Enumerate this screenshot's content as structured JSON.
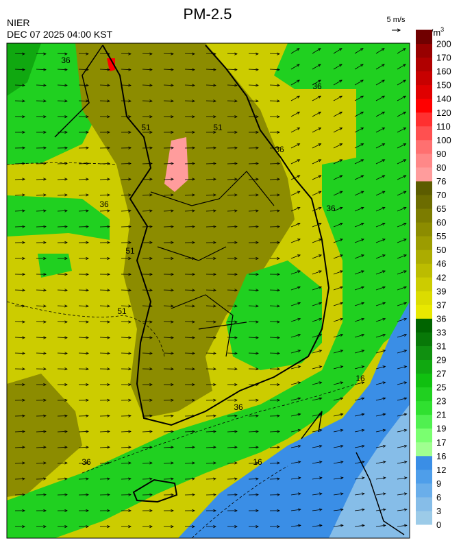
{
  "header": {
    "title": "PM-2.5",
    "agency": "NIER",
    "datetime": "DEC 07 2025 04:00 KST",
    "wind_scale": "5 m/s",
    "unit": "μg/m",
    "unit_power": "3"
  },
  "colorbar": {
    "levels": [
      0,
      3,
      6,
      9,
      12,
      16,
      17,
      19,
      21,
      23,
      25,
      27,
      29,
      31,
      33,
      36,
      37,
      39,
      42,
      46,
      50,
      55,
      60,
      65,
      70,
      76,
      80,
      90,
      100,
      110,
      120,
      140,
      150,
      160,
      170,
      200
    ],
    "colors": [
      "#9ccbe8",
      "#86bde8",
      "#6aaeea",
      "#4e9eea",
      "#3a8ee6",
      "#a0ff90",
      "#7aff70",
      "#50f050",
      "#30e030",
      "#20d020",
      "#10c010",
      "#10a810",
      "#109010",
      "#087808",
      "#006400",
      "#e8e800",
      "#dcdc00",
      "#cccc00",
      "#bcbc00",
      "#acac00",
      "#9c9c00",
      "#8c8c00",
      "#7c7c00",
      "#6c6c00",
      "#5c5c00",
      "#ff9c9c",
      "#ff8888",
      "#ff7070",
      "#ff5050",
      "#ff3030",
      "#ff0000",
      "#e00000",
      "#c80000",
      "#b00000",
      "#980000",
      "#700000"
    ]
  },
  "contour_labels": [
    "36",
    "36",
    "51",
    "51",
    "36",
    "36",
    "36",
    "51",
    "51",
    "36",
    "36",
    "16",
    "16"
  ]
}
